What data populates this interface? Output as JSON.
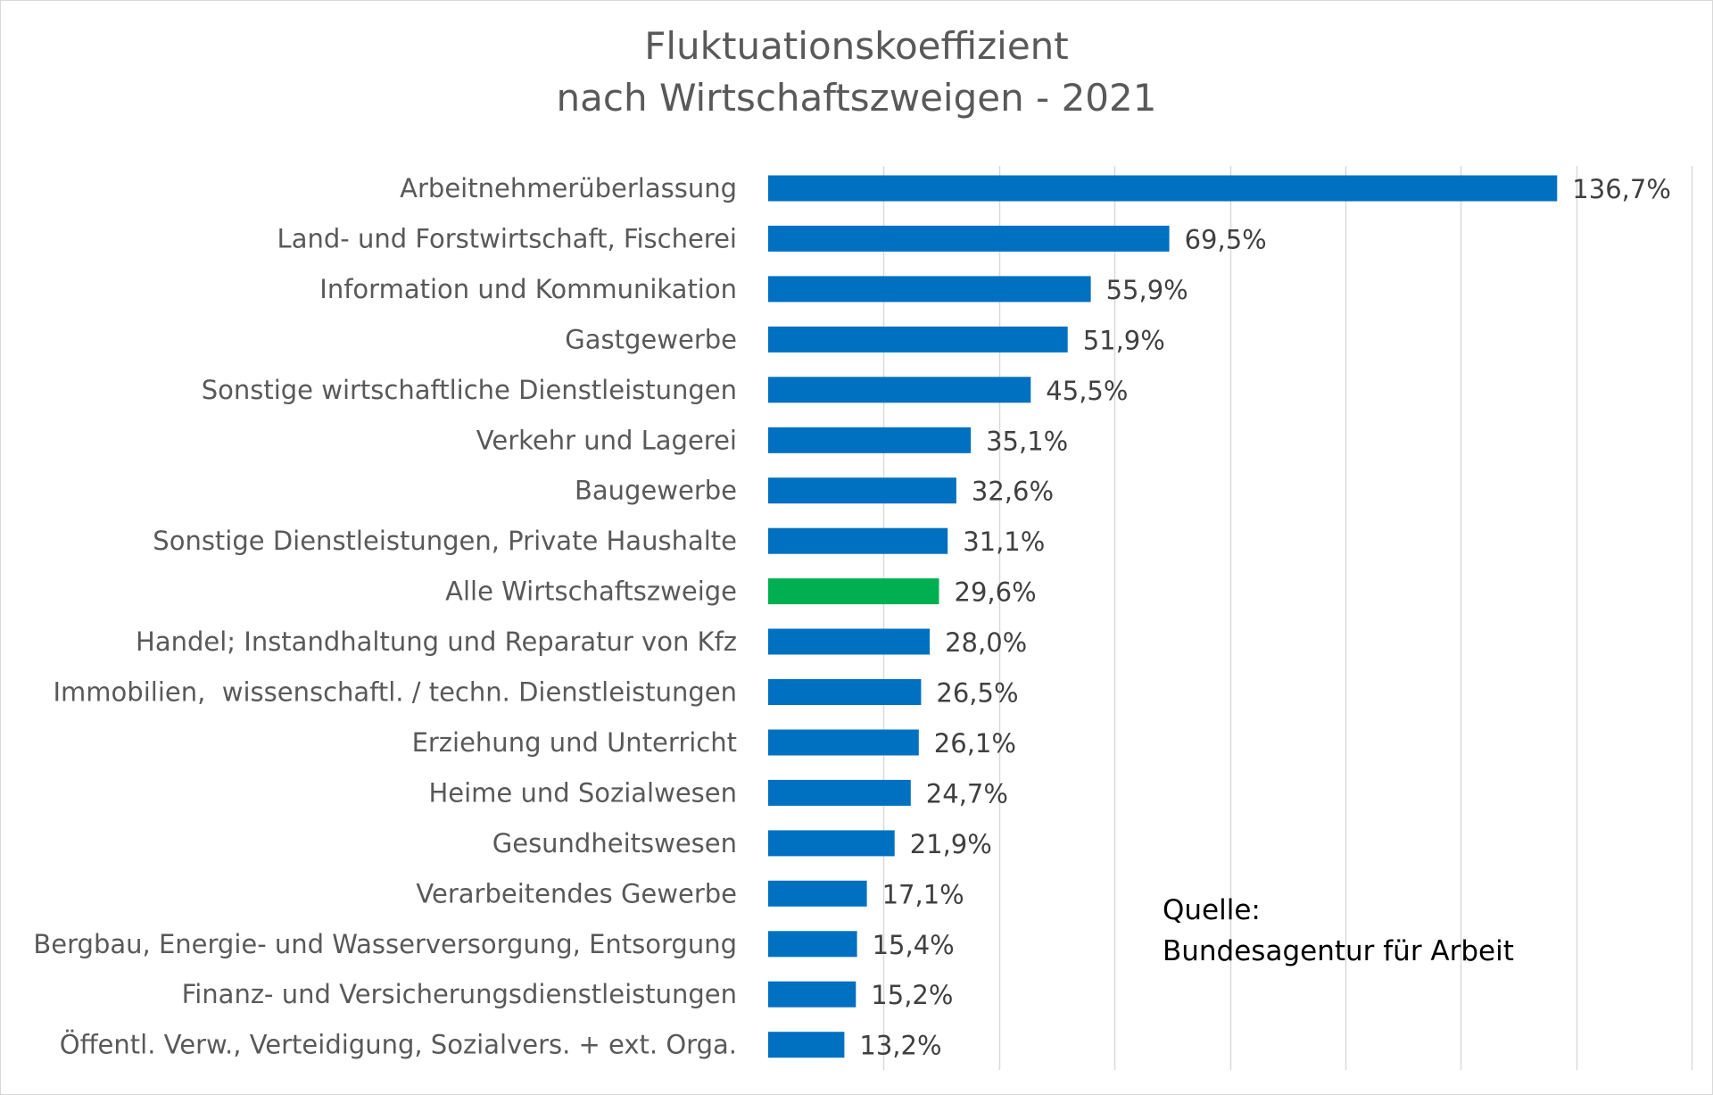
{
  "chart_data": {
    "type": "bar",
    "orientation": "horizontal",
    "title_lines": [
      "Fluktuationskoeffizient",
      "nach Wirtschaftszweigen - 2021"
    ],
    "categories": [
      "Arbeitnehmerüberlassung",
      "Land- und Forstwirtschaft, Fischerei",
      "Information und Kommunikation",
      "Gastgewerbe",
      "Sonstige wirtschaftliche Dienstleistungen",
      "Verkehr und Lagerei",
      "Baugewerbe",
      "Sonstige Dienstleistungen, Private Haushalte",
      "Alle Wirtschaftszweige",
      "Handel; Instandhaltung und Reparatur von Kfz",
      "Immobilien,  wissenschaftl. / techn. Dienstleistungen",
      "Erziehung und Unterricht",
      "Heime und Sozialwesen",
      "Gesundheitswesen",
      "Verarbeitendes Gewerbe",
      "Bergbau, Energie- und Wasserversorgung, Entsorgung",
      "Finanz- und Versicherungsdienstleistungen",
      "Öffentl. Verw., Verteidigung, Sozialvers. + ext. Orga."
    ],
    "values": [
      136.7,
      69.5,
      55.9,
      51.9,
      45.5,
      35.1,
      32.6,
      31.1,
      29.6,
      28.0,
      26.5,
      26.1,
      24.7,
      21.9,
      17.1,
      15.4,
      15.2,
      13.2
    ],
    "value_labels": [
      "136,7%",
      "69,5%",
      "55,9%",
      "51,9%",
      "45,5%",
      "35,1%",
      "32,6%",
      "31,1%",
      "29,6%",
      "28,0%",
      "26,5%",
      "26,1%",
      "24,7%",
      "21,9%",
      "17,1%",
      "15,4%",
      "15,2%",
      "13,2%"
    ],
    "highlight_category": "Alle Wirtschaftszweige",
    "xlim": [
      0,
      160
    ],
    "grid_step": 20,
    "grid": true,
    "x_axis_labels_shown": false,
    "colors": {
      "bar": "#0070c0",
      "highlight": "#00b050",
      "grid": "#d9d9d9"
    }
  },
  "source_note": {
    "line1": "Quelle:",
    "line2": "Bundesagentur für Arbeit"
  }
}
